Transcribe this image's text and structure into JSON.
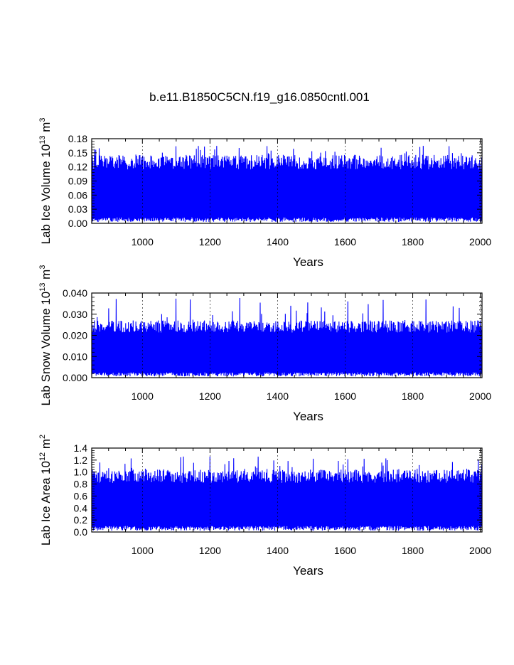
{
  "title": "b.e11.B1850C5CN.f19_g16.0850cntl.001",
  "chart_data": [
    {
      "type": "line",
      "ylabel": "Lab Ice Volume",
      "yunit_base": "10",
      "yunit_exp": "13",
      "yunit_tail": "m",
      "yunit_tail_exp": "3",
      "xlabel": "Years",
      "xlim": [
        850,
        2005
      ],
      "ylim": [
        0.0,
        0.18
      ],
      "xticks": [
        1000,
        1200,
        1400,
        1600,
        1800,
        2000
      ],
      "xtick_labels": [
        "1000",
        "1200",
        "1400",
        "1600",
        "1800",
        "2000"
      ],
      "yticks": [
        0.0,
        0.03,
        0.06,
        0.09,
        0.12,
        0.15,
        0.18
      ],
      "ytick_labels": [
        "0.00",
        "0.03",
        "0.06",
        "0.09",
        "0.12",
        "0.15",
        "0.18"
      ],
      "series_color": "#0000ff",
      "series": [
        {
          "name": "lab ice volume",
          "low_envelope": 0.005,
          "high_envelope": 0.14,
          "peak_max": 0.165
        }
      ]
    },
    {
      "type": "line",
      "ylabel": "Lab Snow Volume",
      "yunit_base": "10",
      "yunit_exp": "13",
      "yunit_tail": "m",
      "yunit_tail_exp": "3",
      "xlabel": "Years",
      "xlim": [
        850,
        2005
      ],
      "ylim": [
        0.0,
        0.04
      ],
      "xticks": [
        1000,
        1200,
        1400,
        1600,
        1800,
        2000
      ],
      "xtick_labels": [
        "1000",
        "1200",
        "1400",
        "1600",
        "1800",
        "2000"
      ],
      "yticks": [
        0.0,
        0.01,
        0.02,
        0.03,
        0.04
      ],
      "ytick_labels": [
        "0.000",
        "0.010",
        "0.020",
        "0.030",
        "0.040"
      ],
      "series_color": "#0000ff",
      "series": [
        {
          "name": "lab snow volume",
          "low_envelope": 0.001,
          "high_envelope": 0.026,
          "peak_max": 0.038
        }
      ]
    },
    {
      "type": "line",
      "ylabel": "Lab Ice Area",
      "yunit_base": "10",
      "yunit_exp": "12",
      "yunit_tail": "m",
      "yunit_tail_exp": "2",
      "xlabel": "Years",
      "xlim": [
        850,
        2005
      ],
      "ylim": [
        0.0,
        1.4
      ],
      "xticks": [
        1000,
        1200,
        1400,
        1600,
        1800,
        2000
      ],
      "xtick_labels": [
        "1000",
        "1200",
        "1400",
        "1600",
        "1800",
        "2000"
      ],
      "yticks": [
        0.0,
        0.2,
        0.4,
        0.6,
        0.8,
        1.0,
        1.2,
        1.4
      ],
      "ytick_labels": [
        "0.0",
        "0.2",
        "0.4",
        "0.6",
        "0.8",
        "1.0",
        "1.2",
        "1.4"
      ],
      "series_color": "#0000ff",
      "series": [
        {
          "name": "lab ice area",
          "low_envelope": 0.04,
          "high_envelope": 1.0,
          "peak_max": 1.26
        }
      ]
    }
  ]
}
